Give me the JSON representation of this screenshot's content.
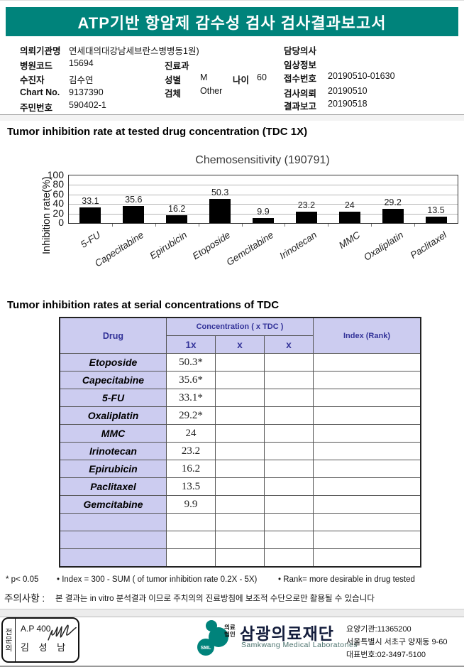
{
  "colors": {
    "banner": "#00837b",
    "table_header_bg": "#ccccf0",
    "table_header_text": "#333399",
    "bar_color": "#000000"
  },
  "header": {
    "title": "ATP기반 항암제 감수성 검사 검사결과보고서"
  },
  "info": {
    "org_label": "의뢰기관명",
    "org_value": "연세대의대강남세브란스병병동1원)",
    "hosp_code_label": "병원코드",
    "hosp_code_value": "15694",
    "dept_label": "진료과",
    "dept_value": "",
    "patient_label": "수진자",
    "patient_value": "김수연",
    "sex_label": "성별",
    "sex_value": "M",
    "age_label": "나이",
    "age_value": "60",
    "chart_label": "Chart No.",
    "chart_value": "9137390",
    "specimen_label": "검체",
    "specimen_value": "Other",
    "jumin_label": "주민번호",
    "jumin_value": "590402-1",
    "doctor_label": "담당의사",
    "doctor_value": "",
    "clinical_label": "임상정보",
    "clinical_value": "",
    "recv_label": "접수번호",
    "recv_value": "20190510-01630",
    "order_label": "검사의뢰",
    "order_value": "20190510",
    "report_label": "결과보고",
    "report_value": "20190518"
  },
  "section1_title": "Tumor inhibition rate at tested drug concentration (TDC 1X)",
  "section2_title": "Tumor inhibition rates at serial concentrations of TDC",
  "chart_data": {
    "type": "bar",
    "title": "Chemosensitivity (190791)",
    "ylabel": "Inhibition rate(%)",
    "xlabel": "",
    "categories": [
      "5-FU",
      "Capecitabine",
      "Epirubicin",
      "Etoposide",
      "Gemcitabine",
      "Irinotecan",
      "MMC",
      "Oxaliplatin",
      "Paclitaxel"
    ],
    "values": [
      33.1,
      35.6,
      16.2,
      50.3,
      9.9,
      23.2,
      24,
      29.2,
      13.5
    ],
    "ylim": [
      0,
      100
    ],
    "yticks": [
      0,
      20,
      40,
      60,
      80,
      100
    ],
    "grid": true,
    "legend": false,
    "bar_color": "#000000"
  },
  "table": {
    "header": {
      "drug": "Drug",
      "conc": "Concentration ( x TDC )",
      "c1": "1x",
      "c2": "x",
      "c3": "x",
      "index": "Index (Rank)"
    },
    "rows": [
      {
        "drug": "Etoposide",
        "c1": "50.3*",
        "c2": "",
        "c3": "",
        "index": ""
      },
      {
        "drug": "Capecitabine",
        "c1": "35.6*",
        "c2": "",
        "c3": "",
        "index": ""
      },
      {
        "drug": "5-FU",
        "c1": "33.1*",
        "c2": "",
        "c3": "",
        "index": ""
      },
      {
        "drug": "Oxaliplatin",
        "c1": "29.2*",
        "c2": "",
        "c3": "",
        "index": ""
      },
      {
        "drug": "MMC",
        "c1": "24",
        "c2": "",
        "c3": "",
        "index": ""
      },
      {
        "drug": "Irinotecan",
        "c1": "23.2",
        "c2": "",
        "c3": "",
        "index": ""
      },
      {
        "drug": "Epirubicin",
        "c1": "16.2",
        "c2": "",
        "c3": "",
        "index": ""
      },
      {
        "drug": "Paclitaxel",
        "c1": "13.5",
        "c2": "",
        "c3": "",
        "index": ""
      },
      {
        "drug": "Gemcitabine",
        "c1": "9.9",
        "c2": "",
        "c3": "",
        "index": ""
      },
      {
        "drug": "",
        "c1": "",
        "c2": "",
        "c3": "",
        "index": ""
      },
      {
        "drug": "",
        "c1": "",
        "c2": "",
        "c3": "",
        "index": ""
      },
      {
        "drug": "",
        "c1": "",
        "c2": "",
        "c3": "",
        "index": ""
      }
    ]
  },
  "footnotes": {
    "p": "* p< 0.05",
    "index": "• Index = 300 - SUM ( of tumor inhibition rate 0.2X  -  5X)",
    "rank": "• Rank= more desirable in drug tested"
  },
  "caution": {
    "label": "주의사항 :",
    "text": "본 결과는 in vitro 분석결과 이므로 주치의의 진료방침에 보조적 수단으로만 활용될 수 있습니다"
  },
  "footer": {
    "stamp": {
      "side": "전문의",
      "line1": "A.P 400",
      "line2": "김 성 남"
    },
    "logo_abbr": "SML",
    "org_type_1": "의료",
    "org_type_2": "법인",
    "company": "삼광의료재단",
    "company_en": "Samkwang Medical Laboratories",
    "reg": "요양기관:11365200",
    "address": "서울특별시 서초구 양재동 9-60",
    "phone": "대표번호:02-3497-5100"
  }
}
